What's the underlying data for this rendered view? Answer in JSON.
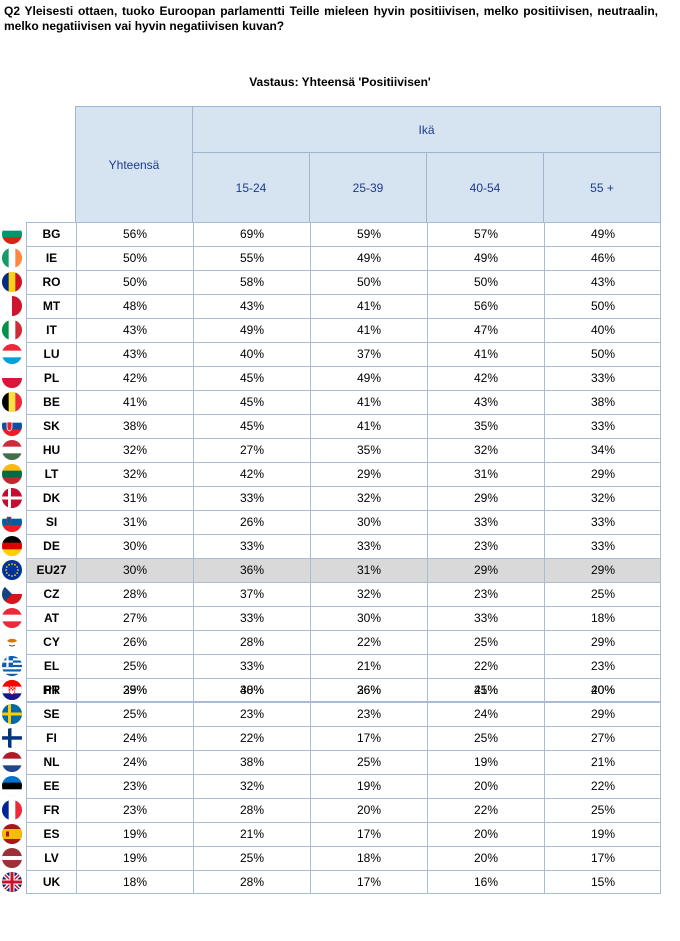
{
  "question": "Q2 Yleisesti ottaen, tuoko Euroopan parlamentti Teille mieleen hyvin positiivisen, melko positiivisen, neutraalin, melko negatiivisen vai hyvin negatiivisen kuvan?",
  "subtitle": "Vastaus: Yhteensä 'Positiivisen'",
  "header": {
    "total": "Yhteensä",
    "age_group": "Ikä",
    "ages": [
      "15-24",
      "25-39",
      "40-54",
      "55 +"
    ]
  },
  "rows": [
    {
      "code": "BG",
      "total": "56%",
      "a1": "69%",
      "a2": "59%",
      "a3": "57%",
      "a4": "49%",
      "flag": "bg-flag-icon"
    },
    {
      "code": "IE",
      "total": "50%",
      "a1": "55%",
      "a2": "49%",
      "a3": "49%",
      "a4": "46%",
      "flag": "ie-flag-icon"
    },
    {
      "code": "RO",
      "total": "50%",
      "a1": "58%",
      "a2": "50%",
      "a3": "50%",
      "a4": "43%",
      "flag": "ro-flag-icon"
    },
    {
      "code": "MT",
      "total": "48%",
      "a1": "43%",
      "a2": "41%",
      "a3": "56%",
      "a4": "50%",
      "flag": "mt-flag-icon"
    },
    {
      "code": "IT",
      "total": "43%",
      "a1": "49%",
      "a2": "41%",
      "a3": "47%",
      "a4": "40%",
      "flag": "it-flag-icon"
    },
    {
      "code": "LU",
      "total": "43%",
      "a1": "40%",
      "a2": "37%",
      "a3": "41%",
      "a4": "50%",
      "flag": "lu-flag-icon"
    },
    {
      "code": "PL",
      "total": "42%",
      "a1": "45%",
      "a2": "49%",
      "a3": "42%",
      "a4": "33%",
      "flag": "pl-flag-icon"
    },
    {
      "code": "BE",
      "total": "41%",
      "a1": "45%",
      "a2": "41%",
      "a3": "43%",
      "a4": "38%",
      "flag": "be-flag-icon"
    },
    {
      "code": "SK",
      "total": "38%",
      "a1": "45%",
      "a2": "41%",
      "a3": "35%",
      "a4": "33%",
      "flag": "sk-flag-icon"
    },
    {
      "code": "HU",
      "total": "32%",
      "a1": "27%",
      "a2": "35%",
      "a3": "32%",
      "a4": "34%",
      "flag": "hu-flag-icon"
    },
    {
      "code": "LT",
      "total": "32%",
      "a1": "42%",
      "a2": "29%",
      "a3": "31%",
      "a4": "29%",
      "flag": "lt-flag-icon"
    },
    {
      "code": "DK",
      "total": "31%",
      "a1": "33%",
      "a2": "32%",
      "a3": "29%",
      "a4": "32%",
      "flag": "dk-flag-icon"
    },
    {
      "code": "SI",
      "total": "31%",
      "a1": "26%",
      "a2": "30%",
      "a3": "33%",
      "a4": "33%",
      "flag": "si-flag-icon"
    },
    {
      "code": "DE",
      "total": "30%",
      "a1": "33%",
      "a2": "33%",
      "a3": "23%",
      "a4": "33%",
      "flag": "de-flag-icon"
    },
    {
      "code": "EU27",
      "total": "30%",
      "a1": "36%",
      "a2": "31%",
      "a3": "29%",
      "a4": "29%",
      "flag": "eu-flag-icon"
    },
    {
      "code": "CZ",
      "total": "28%",
      "a1": "37%",
      "a2": "32%",
      "a3": "23%",
      "a4": "25%",
      "flag": "cz-flag-icon"
    },
    {
      "code": "AT",
      "total": "27%",
      "a1": "33%",
      "a2": "30%",
      "a3": "33%",
      "a4": "18%",
      "flag": "at-flag-icon"
    },
    {
      "code": "CY",
      "total": "26%",
      "a1": "28%",
      "a2": "22%",
      "a3": "25%",
      "a4": "29%",
      "flag": "cy-flag-icon"
    },
    {
      "code": "EL",
      "total": "25%",
      "a1": "33%",
      "a2": "21%",
      "a3": "22%",
      "a4": "23%",
      "flag": "el-flag-icon"
    },
    {
      "code": "PT",
      "total": "25%",
      "a1": "40%",
      "a2": "26%",
      "a3": "25%",
      "a4": "20%",
      "flag": "pt-flag-icon"
    },
    {
      "code": "SE",
      "total": "25%",
      "a1": "23%",
      "a2": "23%",
      "a3": "24%",
      "a4": "29%",
      "flag": "se-flag-icon"
    },
    {
      "code": "FI",
      "total": "24%",
      "a1": "22%",
      "a2": "17%",
      "a3": "25%",
      "a4": "27%",
      "flag": "fi-flag-icon"
    },
    {
      "code": "NL",
      "total": "24%",
      "a1": "38%",
      "a2": "25%",
      "a3": "19%",
      "a4": "21%",
      "flag": "nl-flag-icon"
    },
    {
      "code": "EE",
      "total": "23%",
      "a1": "32%",
      "a2": "19%",
      "a3": "20%",
      "a4": "22%",
      "flag": "ee-flag-icon"
    },
    {
      "code": "FR",
      "total": "23%",
      "a1": "28%",
      "a2": "20%",
      "a3": "22%",
      "a4": "25%",
      "flag": "fr-flag-icon"
    },
    {
      "code": "ES",
      "total": "19%",
      "a1": "21%",
      "a2": "17%",
      "a3": "20%",
      "a4": "19%",
      "flag": "es-flag-icon"
    },
    {
      "code": "LV",
      "total": "19%",
      "a1": "25%",
      "a2": "18%",
      "a3": "20%",
      "a4": "17%",
      "flag": "lv-flag-icon"
    },
    {
      "code": "UK",
      "total": "18%",
      "a1": "28%",
      "a2": "17%",
      "a3": "16%",
      "a4": "15%",
      "flag": "uk-flag-icon"
    }
  ],
  "extra_row": {
    "code": "HR",
    "total": "39%",
    "a1": "38%",
    "a2": "36%",
    "a3": "41%",
    "a4": "40%",
    "flag": "hr-flag-icon"
  },
  "colors": {
    "header_bg": "#d6e4f2",
    "header_text": "#1f3a8a",
    "border": "#a8bcd2",
    "eu_row_bg": "#d9d9d9"
  }
}
